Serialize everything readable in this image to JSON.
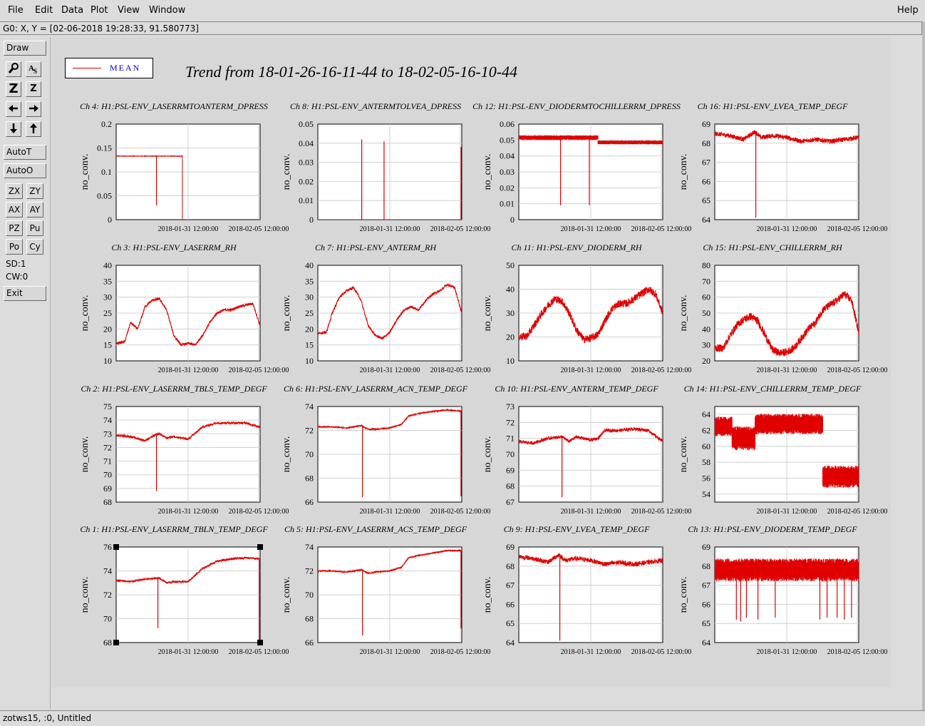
{
  "menu": {
    "file": "File",
    "edit": "Edit",
    "data": "Data",
    "plot": "Plot",
    "view": "View",
    "window": "Window",
    "help": "Help"
  },
  "coord_readout": "G0: X, Y = [02-06-2018 19:28:33, 91.580773]",
  "sidebar": {
    "draw": "Draw",
    "autot": "AutoT",
    "autoo": "AutoO",
    "zx": "ZX",
    "zy": "ZY",
    "ax": "AX",
    "ay": "AY",
    "pz": "PZ",
    "pu": "Pu",
    "po": "Po",
    "cy": "Cy",
    "sd": "SD:1",
    "cw": "CW:0",
    "exit": "Exit",
    "icons": [
      "zoom-icon",
      "text-label-icon",
      "zoom-big-icon",
      "zoom-small-icon",
      "arrow-left-icon",
      "arrow-right-icon",
      "arrow-down-icon",
      "arrow-up-icon"
    ]
  },
  "status": "zotws15, :0, Untitled",
  "legend": {
    "label": "MEAN",
    "color": "#e00000"
  },
  "main_title": "Trend from 18-01-26-16-11-44 to 18-02-05-16-10-44",
  "chart_data": [
    {
      "title": "Ch 4: H1:PSL-ENV_LASERRMTOANTERM_DPRESS",
      "type": "line",
      "ylabel": "no_conv.",
      "yticks": [
        "0",
        "0.05",
        "0.1",
        "0.15",
        "0.2"
      ],
      "ylim": [
        0,
        0.2
      ],
      "xticks": [
        "2018-01-31 12:00:00",
        "2018-02-05 12:00:00"
      ],
      "xlim": [
        0,
        10
      ],
      "style": "flat",
      "base": 0.133,
      "noise": 0.001,
      "spikes": [
        [
          2.8,
          0.03
        ]
      ],
      "end": [
        4.6,
        0
      ]
    },
    {
      "title": "Ch 8: H1:PSL-ENV_ANTERMTOLVEA_DPRESS",
      "type": "line",
      "ylabel": "no_conv.",
      "yticks": [
        "0",
        "0.01",
        "0.02",
        "0.03",
        "0.04",
        "0.05"
      ],
      "ylim": [
        0,
        0.05
      ],
      "xticks": [
        "2018-01-31 12:00:00",
        "2018-02-05 12:00:00"
      ],
      "xlim": [
        0,
        10
      ],
      "style": "zero",
      "spikes": [
        [
          3.05,
          0.042
        ],
        [
          4.6,
          0.041
        ],
        [
          9.95,
          0.038
        ]
      ]
    },
    {
      "title": "Ch 12: H1:PSL-ENV_DIODERMTOCHILLERRM_DPRESS",
      "type": "line",
      "ylabel": "no_conv.",
      "yticks": [
        "0",
        "0.01",
        "0.02",
        "0.03",
        "0.04",
        "0.05",
        "0.06"
      ],
      "ylim": [
        0,
        0.06
      ],
      "xticks": [
        "2018-01-31 12:00:00",
        "2018-02-05 12:00:00"
      ],
      "xlim": [
        0,
        10
      ],
      "style": "band",
      "bands": [
        [
          0,
          5.5,
          0.0515,
          0.003
        ],
        [
          5.5,
          10,
          0.0485,
          0.0025
        ]
      ],
      "spikes": [
        [
          2.9,
          0.009
        ],
        [
          4.9,
          0.009
        ]
      ]
    },
    {
      "title": "Ch 16: H1:PSL-ENV_LVEA_TEMP_DEGF",
      "type": "line",
      "ylabel": "no_conv.",
      "yticks": [
        "64",
        "65",
        "66",
        "67",
        "68",
        "69"
      ],
      "ylim": [
        64,
        69
      ],
      "xticks": [
        "2018-01-31 12:00:00",
        "2018-02-05 12:00:00"
      ],
      "xlim": [
        0,
        10
      ],
      "style": "wave",
      "pts": [
        [
          0,
          68.5
        ],
        [
          1,
          68.4
        ],
        [
          2,
          68.2
        ],
        [
          2.8,
          68.6
        ],
        [
          3.2,
          68.3
        ],
        [
          4,
          68.4
        ],
        [
          5,
          68.3
        ],
        [
          6,
          68.1
        ],
        [
          7,
          68.2
        ],
        [
          8,
          68.1
        ],
        [
          9,
          68.2
        ],
        [
          10,
          68.3
        ]
      ],
      "noise": 0.12,
      "spikes": [
        [
          2.85,
          64.1
        ]
      ]
    },
    {
      "title": "Ch 3: H1:PSL-ENV_LASERRM_RH",
      "type": "line",
      "ylabel": "no_conv.",
      "yticks": [
        "10",
        "15",
        "20",
        "25",
        "30",
        "35",
        "40"
      ],
      "ylim": [
        10,
        40
      ],
      "xticks": [
        "2018-01-31 12:00:00",
        "2018-02-05 12:00:00"
      ],
      "xlim": [
        0,
        10
      ],
      "style": "wave",
      "pts": [
        [
          0,
          15.5
        ],
        [
          0.6,
          16
        ],
        [
          1,
          22
        ],
        [
          1.5,
          20
        ],
        [
          2,
          27
        ],
        [
          2.5,
          29
        ],
        [
          3,
          29.5
        ],
        [
          3.5,
          26
        ],
        [
          4,
          18
        ],
        [
          4.5,
          15
        ],
        [
          5,
          15.5
        ],
        [
          5.5,
          15
        ],
        [
          6,
          18
        ],
        [
          6.5,
          22
        ],
        [
          7,
          25
        ],
        [
          7.5,
          26
        ],
        [
          8,
          26
        ],
        [
          8.5,
          27
        ],
        [
          9,
          27.5
        ],
        [
          9.5,
          28
        ],
        [
          10,
          21
        ]
      ],
      "noise": 0.4
    },
    {
      "title": "Ch 7: H1:PSL-ENV_ANTERM_RH",
      "type": "line",
      "ylabel": "no_conv.",
      "yticks": [
        "10",
        "15",
        "20",
        "25",
        "30",
        "35",
        "40"
      ],
      "ylim": [
        10,
        40
      ],
      "xticks": [
        "2018-01-31 12:00:00",
        "2018-02-05 12:00:00"
      ],
      "xlim": [
        0,
        10
      ],
      "style": "wave",
      "pts": [
        [
          0,
          18.5
        ],
        [
          0.6,
          19
        ],
        [
          1,
          25
        ],
        [
          1.5,
          30
        ],
        [
          2,
          32
        ],
        [
          2.5,
          33
        ],
        [
          3,
          29
        ],
        [
          3.5,
          21
        ],
        [
          4,
          18
        ],
        [
          4.5,
          17
        ],
        [
          5,
          19
        ],
        [
          5.5,
          23
        ],
        [
          6,
          26
        ],
        [
          6.5,
          27
        ],
        [
          7,
          26
        ],
        [
          7.5,
          29
        ],
        [
          8,
          31
        ],
        [
          8.5,
          32
        ],
        [
          9,
          34
        ],
        [
          9.5,
          33
        ],
        [
          10,
          25
        ]
      ],
      "noise": 0.4
    },
    {
      "title": "Ch 11: H1:PSL-ENV_DIODERM_RH",
      "type": "line",
      "ylabel": "no_conv.",
      "yticks": [
        "10",
        "20",
        "30",
        "40",
        "50"
      ],
      "ylim": [
        10,
        50
      ],
      "xticks": [
        "2018-01-31 12:00:00",
        "2018-02-05 12:00:00"
      ],
      "xlim": [
        0,
        10
      ],
      "style": "wave",
      "pts": [
        [
          0,
          20
        ],
        [
          0.6,
          20.5
        ],
        [
          1.5,
          29
        ],
        [
          2,
          33
        ],
        [
          2.5,
          36
        ],
        [
          3,
          35
        ],
        [
          3.5,
          30
        ],
        [
          4,
          23
        ],
        [
          4.5,
          19
        ],
        [
          5,
          19.5
        ],
        [
          5.5,
          21
        ],
        [
          6,
          27
        ],
        [
          6.5,
          32
        ],
        [
          7,
          34
        ],
        [
          7.5,
          34
        ],
        [
          8,
          36
        ],
        [
          8.5,
          38
        ],
        [
          9,
          40
        ],
        [
          9.5,
          38
        ],
        [
          10,
          30
        ]
      ],
      "noise": 1.6
    },
    {
      "title": "Ch 15: H1:PSL-ENV_CHILLERRM_RH",
      "type": "line",
      "ylabel": "no_conv.",
      "yticks": [
        "20",
        "30",
        "40",
        "50",
        "60",
        "70",
        "80"
      ],
      "ylim": [
        20,
        80
      ],
      "xticks": [
        "2018-01-31 12:00:00",
        "2018-02-05 12:00:00"
      ],
      "xlim": [
        0,
        10
      ],
      "style": "wave",
      "pts": [
        [
          0,
          28
        ],
        [
          0.6,
          28
        ],
        [
          1,
          35
        ],
        [
          1.5,
          42
        ],
        [
          2,
          46
        ],
        [
          2.5,
          48
        ],
        [
          3,
          45
        ],
        [
          3.5,
          36
        ],
        [
          4,
          27
        ],
        [
          4.5,
          25
        ],
        [
          5,
          25.5
        ],
        [
          5.5,
          28
        ],
        [
          6,
          34
        ],
        [
          6.5,
          40
        ],
        [
          7,
          44
        ],
        [
          7.5,
          52
        ],
        [
          8,
          55
        ],
        [
          8.5,
          58
        ],
        [
          9,
          62
        ],
        [
          9.5,
          58
        ],
        [
          10,
          38
        ]
      ],
      "noise": 2.4
    },
    {
      "title": "Ch 2: H1:PSL-ENV_LASERRM_TBLS_TEMP_DEGF",
      "type": "line",
      "ylabel": "no_conv.",
      "yticks": [
        "68",
        "69",
        "70",
        "71",
        "72",
        "73",
        "74",
        "75"
      ],
      "ylim": [
        68,
        75
      ],
      "xticks": [
        "2018-01-31 12:00:00",
        "2018-02-05 12:00:00"
      ],
      "xlim": [
        0,
        10
      ],
      "style": "wave",
      "pts": [
        [
          0,
          72.9
        ],
        [
          1,
          72.8
        ],
        [
          2,
          72.5
        ],
        [
          2.7,
          72.9
        ],
        [
          3,
          73.0
        ],
        [
          3.5,
          72.7
        ],
        [
          4,
          72.8
        ],
        [
          5,
          72.6
        ],
        [
          6,
          73.5
        ],
        [
          7,
          73.8
        ],
        [
          8,
          73.8
        ],
        [
          9,
          73.8
        ],
        [
          10,
          73.5
        ]
      ],
      "noise": 0.08,
      "spikes": [
        [
          2.8,
          68.8
        ]
      ]
    },
    {
      "title": "Ch 6: H1:PSL-ENV_LASERRM_ACN_TEMP_DEGF",
      "type": "line",
      "ylabel": "no_conv.",
      "yticks": [
        "66",
        "68",
        "70",
        "72",
        "74"
      ],
      "ylim": [
        66,
        74
      ],
      "xticks": [
        "2018-01-31 12:00:00",
        "2018-02-05 12:00:00"
      ],
      "xlim": [
        0,
        10
      ],
      "style": "wave",
      "pts": [
        [
          0,
          72.3
        ],
        [
          1,
          72.3
        ],
        [
          2,
          72.2
        ],
        [
          3,
          72.4
        ],
        [
          3.5,
          72.1
        ],
        [
          4,
          72.1
        ],
        [
          5,
          72.2
        ],
        [
          5.8,
          72.5
        ],
        [
          6.3,
          73.2
        ],
        [
          7,
          73.4
        ],
        [
          8,
          73.6
        ],
        [
          9,
          73.7
        ],
        [
          10,
          73.6
        ]
      ],
      "noise": 0.05,
      "spikes": [
        [
          3.1,
          66.4
        ],
        [
          9.95,
          66.5
        ]
      ]
    },
    {
      "title": "Ch 10: H1:PSL-ENV_ANTERM_TEMP_DEGF",
      "type": "line",
      "ylabel": "no_conv.",
      "yticks": [
        "67",
        "68",
        "69",
        "70",
        "71",
        "72",
        "73"
      ],
      "ylim": [
        67,
        73
      ],
      "xticks": [
        "2018-01-31 12:00:00",
        "2018-02-05 12:00:00"
      ],
      "xlim": [
        0,
        10
      ],
      "style": "wave",
      "pts": [
        [
          0,
          70.8
        ],
        [
          1,
          70.7
        ],
        [
          2,
          71.0
        ],
        [
          3,
          71.1
        ],
        [
          3.5,
          70.8
        ],
        [
          4,
          71.1
        ],
        [
          5,
          70.9
        ],
        [
          5.5,
          71.0
        ],
        [
          6,
          71.5
        ],
        [
          7,
          71.5
        ],
        [
          8,
          71.6
        ],
        [
          9,
          71.5
        ],
        [
          10,
          70.8
        ]
      ],
      "noise": 0.1,
      "spikes": [
        [
          3.0,
          67.3
        ]
      ]
    },
    {
      "title": "Ch 14: H1:PSL-ENV_CHILLERRM_TEMP_DEGF",
      "type": "line",
      "ylabel": "no_conv.",
      "yticks": [
        "54",
        "56",
        "58",
        "60",
        "62",
        "64"
      ],
      "ylim": [
        53,
        65
      ],
      "xticks": [
        "2018-01-31 12:00:00",
        "2018-02-05 12:00:00"
      ],
      "xlim": [
        0,
        10
      ],
      "style": "band",
      "bands": [
        [
          0,
          1.2,
          62.5,
          2.5
        ],
        [
          1.2,
          2.8,
          61.0,
          3.0
        ],
        [
          2.8,
          7.5,
          62.8,
          2.6
        ],
        [
          7.5,
          10,
          56.2,
          2.8
        ]
      ]
    },
    {
      "title": "Ch 1: H1:PSL-ENV_LASERRM_TBLN_TEMP_DEGF",
      "type": "line",
      "ylabel": "no_conv.",
      "yticks": [
        "68",
        "70",
        "72",
        "74",
        "76"
      ],
      "ylim": [
        68,
        76
      ],
      "xticks": [
        "2018-01-31 12:00:00",
        "2018-02-05 12:00:00"
      ],
      "xlim": [
        0,
        10
      ],
      "style": "wave",
      "pts": [
        [
          0,
          73.2
        ],
        [
          1,
          73.1
        ],
        [
          2,
          73.3
        ],
        [
          3,
          73.4
        ],
        [
          3.5,
          73.0
        ],
        [
          4,
          73.1
        ],
        [
          5,
          73.1
        ],
        [
          6,
          74.2
        ],
        [
          7,
          74.8
        ],
        [
          8,
          75.0
        ],
        [
          9,
          75.1
        ],
        [
          10,
          75.0
        ]
      ],
      "noise": 0.08,
      "spikes": [
        [
          2.9,
          69.2
        ],
        [
          9.95,
          68.2
        ]
      ],
      "selected": true
    },
    {
      "title": "Ch 5: H1:PSL-ENV_LASERRM_ACS_TEMP_DEGF",
      "type": "line",
      "ylabel": "no_conv.",
      "yticks": [
        "66",
        "68",
        "70",
        "72",
        "74"
      ],
      "ylim": [
        66,
        74
      ],
      "xticks": [
        "2018-01-31 12:00:00",
        "2018-02-05 12:00:00"
      ],
      "xlim": [
        0,
        10
      ],
      "style": "wave",
      "pts": [
        [
          0,
          72.0
        ],
        [
          1,
          72.0
        ],
        [
          2,
          71.9
        ],
        [
          3,
          72.1
        ],
        [
          3.5,
          71.8
        ],
        [
          4,
          71.9
        ],
        [
          5,
          72.0
        ],
        [
          5.8,
          72.3
        ],
        [
          6.3,
          73.1
        ],
        [
          7,
          73.3
        ],
        [
          8,
          73.5
        ],
        [
          9,
          73.7
        ],
        [
          10,
          73.7
        ]
      ],
      "noise": 0.05,
      "spikes": [
        [
          3.1,
          66.6
        ],
        [
          9.95,
          67.2
        ]
      ]
    },
    {
      "title": "Ch 9: H1:PSL-ENV_LVEA_TEMP_DEGF",
      "type": "line",
      "ylabel": "no_conv.",
      "yticks": [
        "64",
        "65",
        "66",
        "67",
        "68",
        "69"
      ],
      "ylim": [
        64,
        69
      ],
      "xticks": [
        "2018-01-31 12:00:00",
        "2018-02-05 12:00:00"
      ],
      "xlim": [
        0,
        10
      ],
      "style": "wave",
      "pts": [
        [
          0,
          68.5
        ],
        [
          1,
          68.4
        ],
        [
          2,
          68.2
        ],
        [
          2.8,
          68.6
        ],
        [
          3.2,
          68.3
        ],
        [
          4,
          68.4
        ],
        [
          5,
          68.3
        ],
        [
          6,
          68.1
        ],
        [
          7,
          68.2
        ],
        [
          8,
          68.1
        ],
        [
          9,
          68.2
        ],
        [
          10,
          68.3
        ]
      ],
      "noise": 0.12,
      "spikes": [
        [
          2.85,
          64.1
        ]
      ]
    },
    {
      "title": "Ch 13: H1:PSL-ENV_DIODERM_TEMP_DEGF",
      "type": "line",
      "ylabel": "no_conv.",
      "yticks": [
        "64",
        "65",
        "66",
        "67",
        "68",
        "69"
      ],
      "ylim": [
        64,
        69
      ],
      "xticks": [
        "2018-01-31 12:00:00",
        "2018-02-05 12:00:00"
      ],
      "xlim": [
        0,
        10
      ],
      "style": "band",
      "bands": [
        [
          0,
          10,
          67.8,
          1.2
        ]
      ],
      "spikes": [
        [
          1.5,
          65.2
        ],
        [
          1.8,
          65.1
        ],
        [
          2.2,
          65.3
        ],
        [
          3.0,
          65.2
        ],
        [
          4.2,
          65.3
        ],
        [
          7.3,
          65.2
        ],
        [
          7.8,
          65.3
        ],
        [
          8.5,
          65.3
        ],
        [
          9.0,
          65.2
        ],
        [
          9.5,
          65.3
        ]
      ]
    }
  ]
}
